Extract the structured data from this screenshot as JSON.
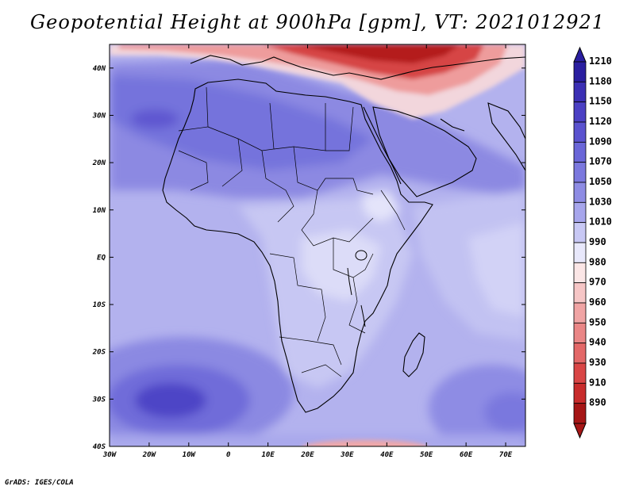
{
  "title": "Geopotential Height at 900hPa [gpm], VT: 2021012921",
  "credit": "GrADS: IGES/COLA",
  "map": {
    "region": "Africa",
    "variable": "Geopotential Height at 900hPa",
    "units": "gpm",
    "lon_range": [
      -30,
      75
    ],
    "lat_range": [
      -40,
      45
    ],
    "lat_ticks": [
      "40N",
      "30N",
      "20N",
      "10N",
      "EQ",
      "10S",
      "20S",
      "30S",
      "40S"
    ],
    "lon_ticks": [
      "30W",
      "20W",
      "10W",
      "0",
      "10E",
      "20E",
      "30E",
      "40E",
      "50E",
      "60E",
      "70E"
    ]
  },
  "colorbar": {
    "levels": [
      "1210",
      "1180",
      "1150",
      "1120",
      "1090",
      "1070",
      "1050",
      "1030",
      "1010",
      "990",
      "980",
      "970",
      "960",
      "950",
      "940",
      "930",
      "910",
      "890"
    ],
    "colors": [
      "#2a1ea0",
      "#3b2fb4",
      "#4b40c4",
      "#5a52cf",
      "#6a66d8",
      "#7b78de",
      "#8e8ce4",
      "#a7a6ec",
      "#c8c8f4",
      "#e8e8fb",
      "#fbe6e6",
      "#f6c6c6",
      "#f0a4a4",
      "#ea8686",
      "#e36868",
      "#d94646",
      "#c82c2c",
      "#a61616"
    ],
    "top_arrow_color": "#2a1ea0",
    "bottom_arrow_color": "#a61616"
  }
}
